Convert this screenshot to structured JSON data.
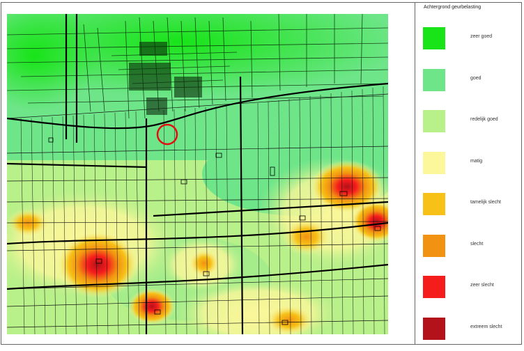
{
  "legend": {
    "title": "Achtergrond geurbelasting",
    "items": [
      {
        "label": "zeer goed",
        "color": "#18e418"
      },
      {
        "label": "goed",
        "color": "#6fe58a"
      },
      {
        "label": "redelijk goed",
        "color": "#b8f08a"
      },
      {
        "label": "matig",
        "color": "#fbf79a"
      },
      {
        "label": "tamelijk slecht",
        "color": "#f7c118"
      },
      {
        "label": "slecht",
        "color": "#f29212"
      },
      {
        "label": "zeer slecht",
        "color": "#f51c1c"
      },
      {
        "label": "extreem slecht",
        "color": "#b3121a"
      }
    ]
  },
  "map": {
    "marker": "red-circle-location-marker",
    "marker_color": "#e01010"
  }
}
